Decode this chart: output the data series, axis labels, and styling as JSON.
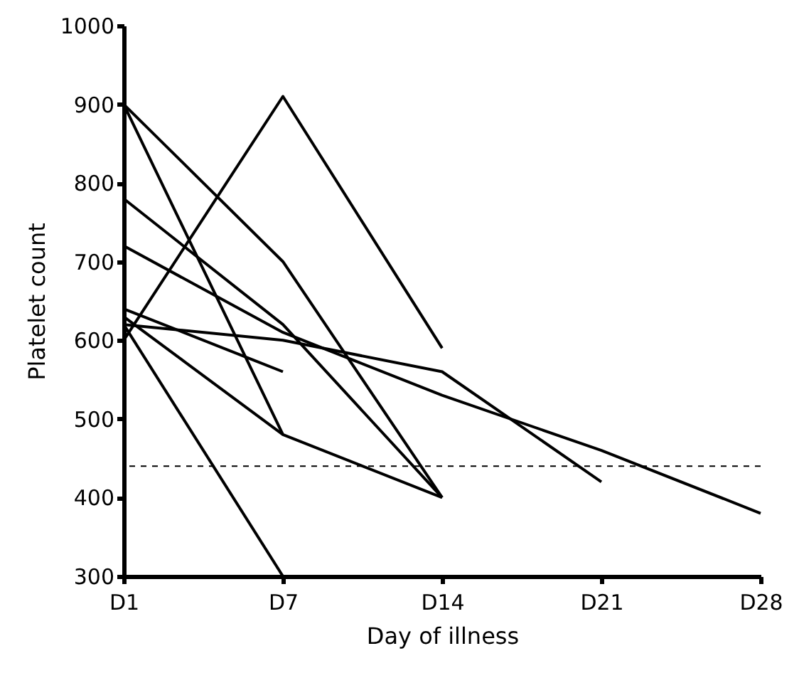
{
  "chart_data": {
    "type": "line",
    "xlabel": "Day of illness",
    "ylabel": "Platelet count",
    "categories": [
      "D1",
      "D7",
      "D14",
      "D21",
      "D28"
    ],
    "ylim": [
      300,
      1000
    ],
    "yticks": [
      300,
      400,
      500,
      600,
      700,
      800,
      900,
      1000
    ],
    "grid": false,
    "marker": "none",
    "line_style": "solid",
    "series": [
      {
        "color": "#000000",
        "values": [
          600,
          910,
          590,
          null,
          null
        ]
      },
      {
        "color": "#000000",
        "values": [
          900,
          700,
          400,
          null,
          null
        ]
      },
      {
        "color": "#000000",
        "values": [
          900,
          480,
          400,
          null,
          null
        ]
      },
      {
        "color": "#000000",
        "values": [
          630,
          480,
          null,
          null,
          null
        ]
      },
      {
        "color": "#000000",
        "values": [
          780,
          620,
          400,
          null,
          null
        ]
      },
      {
        "color": "#000000",
        "values": [
          720,
          610,
          530,
          460,
          380
        ]
      },
      {
        "color": "#000000",
        "values": [
          620,
          600,
          560,
          420,
          null
        ]
      },
      {
        "color": "#000000",
        "values": [
          640,
          560,
          null,
          null,
          null
        ]
      },
      {
        "color": "#000000",
        "values": [
          620,
          300,
          null,
          null,
          null
        ]
      }
    ],
    "ref_lines": [
      {
        "axis": "y",
        "value": 440,
        "line_style": "dashed",
        "color": "#000000"
      }
    ]
  }
}
